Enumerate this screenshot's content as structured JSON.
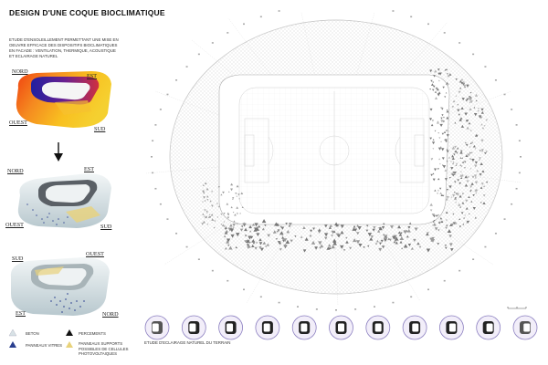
{
  "title": "DESIGN D'UNE COQUE BIOCLIMATIQUE",
  "description_lines": [
    "ETUDE D'ENSOLEILLEMENT PERMETTANT UNE MISE EN",
    "OEUVRE EFFICACE DES DISPOSITIFS BIOCLIMATIQUES",
    "EN FACADE : VENTILATION, THERMIQUE, ACOUSTIQUE",
    "ET ECLAIRAGE NATUREL"
  ],
  "model_1_labels": {
    "nord": "NORD",
    "est": "EST",
    "ouest": "OUEST",
    "sud": "SUD"
  },
  "model_2_labels": {
    "nord": "NORD",
    "est": "EST",
    "ouest": "OUEST",
    "sud": "SUD"
  },
  "model_3_labels": {
    "sud": "SUD",
    "ouest": "OUEST",
    "est": "EST",
    "nord": "NORD"
  },
  "legend": {
    "beton": "BETON",
    "percements": "PERCEMENTS",
    "panneaux_vitres": "PANNEAUX VITRES",
    "panneaux_supports_lines": [
      "PANNEAUX SUPPORTS",
      "POSSIBLES DE CELLULES",
      "PHOTOVOLTAIQUES"
    ]
  },
  "caption": "ETUDE D'ECLAIRAGE NATUREL DU TERRAIN",
  "colors": {
    "heat_hot": "#f5d020",
    "heat_mid": "#f07020",
    "heat_cold": "#3030a0",
    "shell_grey": "#d8e2e6",
    "glass_blue": "#2a3f8f",
    "pv_yellow": "#e8d27a",
    "ring_purple": "#8b7fc0"
  },
  "light_study_count": 11
}
